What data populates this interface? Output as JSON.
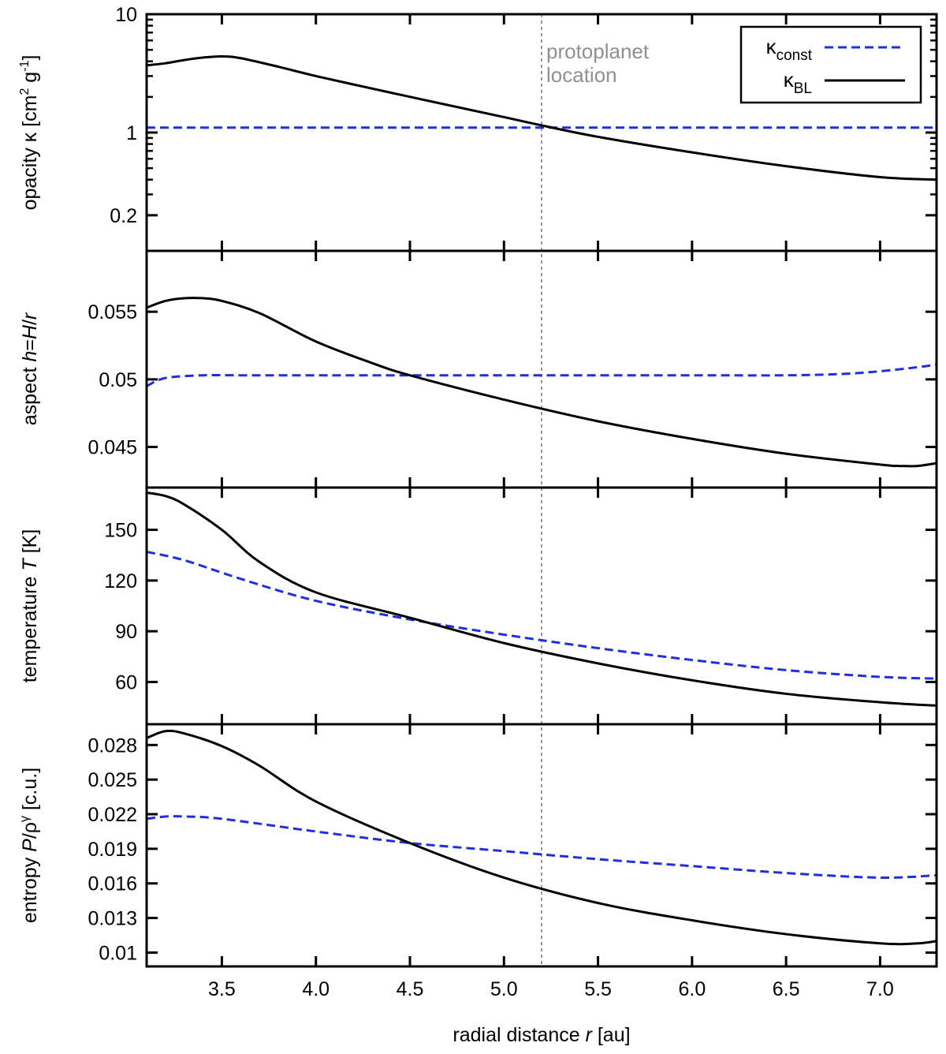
{
  "chart_data": [
    {
      "type": "line",
      "panel": "opacity",
      "ylabel_parts": [
        "opacity κ [cm",
        "2",
        " g",
        "-1",
        "]"
      ],
      "yscale": "log",
      "ylim": [
        0.1,
        10
      ],
      "yticks": [
        0.2,
        1,
        10
      ],
      "ytick_labels": [
        "0.2",
        "1",
        "10"
      ],
      "series": [
        {
          "name": "κconst",
          "style": "dashed",
          "color": "#1f2fe0",
          "x": [
            3.1,
            7.3
          ],
          "y": [
            1.1,
            1.1
          ]
        },
        {
          "name": "κBL",
          "style": "solid",
          "color": "#000000",
          "x": [
            3.1,
            3.2,
            3.3,
            3.4,
            3.5,
            3.6,
            3.8,
            4.0,
            4.3,
            4.6,
            5.0,
            5.2,
            5.5,
            6.0,
            6.5,
            7.0,
            7.3
          ],
          "y": [
            3.7,
            3.85,
            4.1,
            4.3,
            4.4,
            4.25,
            3.6,
            3.0,
            2.35,
            1.85,
            1.35,
            1.15,
            0.92,
            0.68,
            0.52,
            0.42,
            0.4
          ]
        }
      ],
      "annotation": {
        "lines": [
          "protoplanet",
          "location"
        ],
        "x": 5.2
      },
      "legend": {
        "position": "top-right",
        "entries": [
          {
            "main": "κ",
            "sub": "const",
            "style": "dashed",
            "color": "#1f2fe0"
          },
          {
            "main": "κ",
            "sub": "BL",
            "style": "solid",
            "color": "#000000"
          }
        ]
      }
    },
    {
      "type": "line",
      "panel": "aspect",
      "ylabel_parts": [
        "aspect ",
        "h",
        "=",
        "H",
        "/",
        "r"
      ],
      "yscale": "linear",
      "ylim": [
        0.042,
        0.0595
      ],
      "yticks": [
        0.045,
        0.05,
        0.055
      ],
      "ytick_labels": [
        "0.045",
        "0.05",
        "0.055"
      ],
      "series": [
        {
          "name": "κconst",
          "style": "dashed",
          "color": "#1f2fe0",
          "x": [
            3.1,
            3.2,
            3.4,
            3.6,
            4.0,
            4.5,
            5.0,
            5.5,
            6.0,
            6.5,
            6.8,
            7.0,
            7.2,
            7.3
          ],
          "y": [
            0.0495,
            0.0501,
            0.0503,
            0.0503,
            0.0503,
            0.0503,
            0.0503,
            0.0503,
            0.0503,
            0.0503,
            0.0504,
            0.0506,
            0.0509,
            0.0511
          ]
        },
        {
          "name": "κBL",
          "style": "solid",
          "color": "#000000",
          "x": [
            3.1,
            3.2,
            3.3,
            3.4,
            3.5,
            3.7,
            4.0,
            4.3,
            4.5,
            5.0,
            5.5,
            6.0,
            6.5,
            7.0,
            7.1,
            7.2,
            7.3
          ],
          "y": [
            0.0553,
            0.0558,
            0.056,
            0.056,
            0.0558,
            0.0549,
            0.0528,
            0.0512,
            0.0503,
            0.0485,
            0.0469,
            0.0456,
            0.0445,
            0.0437,
            0.0436,
            0.0436,
            0.0438
          ]
        }
      ]
    },
    {
      "type": "line",
      "panel": "temperature",
      "ylabel_parts": [
        "temperature ",
        "T",
        " [K]"
      ],
      "yscale": "linear",
      "ylim": [
        35,
        175
      ],
      "yticks": [
        60,
        90,
        120,
        150
      ],
      "ytick_labels": [
        "60",
        "90",
        "120",
        "150"
      ],
      "series": [
        {
          "name": "κconst",
          "style": "dashed",
          "color": "#1f2fe0",
          "x": [
            3.1,
            3.3,
            3.6,
            4.0,
            4.5,
            5.0,
            5.5,
            6.0,
            6.5,
            7.0,
            7.3
          ],
          "y": [
            137,
            132,
            121,
            108,
            97,
            88,
            80,
            73,
            67,
            63,
            62
          ]
        },
        {
          "name": "κBL",
          "style": "solid",
          "color": "#000000",
          "x": [
            3.1,
            3.2,
            3.3,
            3.5,
            3.7,
            4.0,
            4.5,
            5.0,
            5.5,
            6.0,
            6.5,
            7.0,
            7.3
          ],
          "y": [
            172,
            170,
            165,
            150,
            131,
            113,
            98,
            83,
            71,
            61,
            53,
            48,
            46
          ]
        }
      ]
    },
    {
      "type": "line",
      "panel": "entropy",
      "ylabel_parts": [
        "entropy ",
        "P",
        "/ρ",
        "γ",
        " [c.u.]"
      ],
      "yscale": "linear",
      "ylim": [
        0.0088,
        0.0298
      ],
      "yticks": [
        0.01,
        0.013,
        0.016,
        0.019,
        0.022,
        0.025,
        0.028
      ],
      "ytick_labels": [
        "0.01",
        "0.013",
        "0.016",
        "0.019",
        "0.022",
        "0.025",
        "0.028"
      ],
      "series": [
        {
          "name": "κconst",
          "style": "dashed",
          "color": "#1f2fe0",
          "x": [
            3.1,
            3.2,
            3.3,
            3.5,
            4.0,
            4.5,
            5.0,
            5.5,
            6.0,
            6.5,
            7.0,
            7.3
          ],
          "y": [
            0.0216,
            0.0218,
            0.0218,
            0.0216,
            0.0205,
            0.0195,
            0.0188,
            0.0181,
            0.0175,
            0.0169,
            0.0165,
            0.0167
          ]
        },
        {
          "name": "κBL",
          "style": "solid",
          "color": "#000000",
          "x": [
            3.1,
            3.2,
            3.3,
            3.5,
            3.7,
            4.0,
            4.5,
            5.0,
            5.5,
            6.0,
            6.5,
            7.0,
            7.2,
            7.3
          ],
          "y": [
            0.0286,
            0.0292,
            0.029,
            0.0279,
            0.0262,
            0.0231,
            0.0195,
            0.0165,
            0.0143,
            0.0128,
            0.0116,
            0.0108,
            0.0108,
            0.011
          ]
        }
      ]
    }
  ],
  "xaxis": {
    "label_parts": [
      "radial distance ",
      "r",
      " [au]"
    ],
    "xlim": [
      3.1,
      7.3
    ],
    "xticks": [
      3.5,
      4.0,
      4.5,
      5.0,
      5.5,
      6.0,
      6.5,
      7.0
    ],
    "xtick_labels": [
      "3.5",
      "4.0",
      "4.5",
      "5.0",
      "5.5",
      "6.0",
      "6.5",
      "7.0"
    ],
    "vline_x": 5.2
  }
}
